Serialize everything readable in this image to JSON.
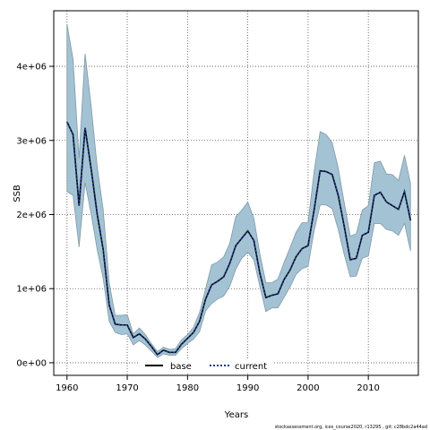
{
  "chart_data": {
    "type": "line",
    "title": "",
    "xlabel": "Years",
    "ylabel": "SSB",
    "xlim": [
      1957.8,
      2018.3
    ],
    "ylim": [
      -170000,
      4750000
    ],
    "grid": true,
    "legend_position": "bottom-center",
    "x_ticks": [
      1960,
      1970,
      1980,
      1990,
      2000,
      2010
    ],
    "x_tick_labels": [
      "1960",
      "1970",
      "1980",
      "1990",
      "2000",
      "2010"
    ],
    "y_ticks": [
      0,
      1000000,
      2000000,
      3000000,
      4000000
    ],
    "y_tick_labels": [
      "0e+00",
      "1e+06",
      "2e+06",
      "3e+06",
      "4e+06"
    ],
    "legend": [
      {
        "label": "base",
        "style": "solid",
        "color": "#000000"
      },
      {
        "label": "current",
        "style": "dotted",
        "color": "#1a3a8c"
      }
    ],
    "colors": {
      "band_fill": "#a3c2d3",
      "band_stroke": "#7f9aa8",
      "base_line": "#000000",
      "current_line": "#1a3a8c"
    },
    "x": [
      1960,
      1961,
      1962,
      1963,
      1964,
      1965,
      1966,
      1967,
      1968,
      1969,
      1970,
      1971,
      1972,
      1973,
      1974,
      1975,
      1976,
      1977,
      1978,
      1979,
      1980,
      1981,
      1982,
      1983,
      1984,
      1985,
      1986,
      1987,
      1988,
      1989,
      1990,
      1991,
      1992,
      1993,
      1994,
      1995,
      1996,
      1997,
      1998,
      1999,
      2000,
      2001,
      2002,
      2003,
      2004,
      2005,
      2006,
      2007,
      2008,
      2009,
      2010,
      2011,
      2012,
      2013,
      2014,
      2015,
      2016,
      2017
    ],
    "series": [
      {
        "name": "base",
        "values": [
          3250000,
          3080000,
          2120000,
          3170000,
          2620000,
          2010000,
          1530000,
          780000,
          520000,
          510000,
          510000,
          340000,
          390000,
          320000,
          220000,
          110000,
          170000,
          140000,
          140000,
          250000,
          330000,
          410000,
          560000,
          860000,
          1050000,
          1100000,
          1160000,
          1340000,
          1580000,
          1680000,
          1780000,
          1650000,
          1210000,
          880000,
          910000,
          930000,
          1120000,
          1250000,
          1430000,
          1540000,
          1580000,
          2060000,
          2590000,
          2580000,
          2540000,
          2260000,
          1840000,
          1390000,
          1410000,
          1720000,
          1760000,
          2260000,
          2300000,
          2170000,
          2120000,
          2070000,
          2310000,
          1920000
        ]
      },
      {
        "name": "current",
        "values": [
          3250000,
          3080000,
          2120000,
          3170000,
          2620000,
          2010000,
          1530000,
          780000,
          520000,
          510000,
          510000,
          340000,
          390000,
          320000,
          220000,
          110000,
          170000,
          140000,
          140000,
          250000,
          330000,
          410000,
          560000,
          860000,
          1050000,
          1100000,
          1160000,
          1340000,
          1580000,
          1680000,
          1780000,
          1650000,
          1210000,
          880000,
          910000,
          930000,
          1120000,
          1250000,
          1430000,
          1540000,
          1580000,
          2060000,
          2590000,
          2580000,
          2540000,
          2260000,
          1840000,
          1390000,
          1410000,
          1720000,
          1760000,
          2260000,
          2300000,
          2170000,
          2120000,
          2070000,
          2310000,
          1920000
        ]
      }
    ],
    "band": {
      "upper": [
        4570000,
        4100000,
        2760000,
        4170000,
        3470000,
        2650000,
        2070000,
        1080000,
        640000,
        640000,
        650000,
        390000,
        470000,
        380000,
        260000,
        150000,
        210000,
        180000,
        190000,
        310000,
        380000,
        480000,
        680000,
        1000000,
        1320000,
        1360000,
        1430000,
        1610000,
        1970000,
        2060000,
        2170000,
        1950000,
        1470000,
        1080000,
        1080000,
        1130000,
        1350000,
        1550000,
        1760000,
        1890000,
        1890000,
        2580000,
        3120000,
        3080000,
        2970000,
        2630000,
        2160000,
        1710000,
        1740000,
        2060000,
        2120000,
        2700000,
        2720000,
        2550000,
        2540000,
        2460000,
        2800000,
        2420000
      ],
      "lower": [
        2310000,
        2260000,
        1560000,
        2430000,
        2010000,
        1530000,
        1140000,
        560000,
        410000,
        380000,
        390000,
        240000,
        300000,
        240000,
        160000,
        70000,
        120000,
        100000,
        100000,
        190000,
        260000,
        320000,
        420000,
        700000,
        800000,
        860000,
        900000,
        1030000,
        1260000,
        1410000,
        1490000,
        1390000,
        1030000,
        690000,
        740000,
        740000,
        880000,
        1020000,
        1190000,
        1270000,
        1300000,
        1780000,
        2130000,
        2130000,
        2080000,
        1800000,
        1460000,
        1160000,
        1170000,
        1410000,
        1440000,
        1880000,
        1880000,
        1800000,
        1780000,
        1720000,
        1880000,
        1510000
      ]
    }
  },
  "footer_text": "stockassessment.org, ices_course2020, r13295 , git: c28bdc2a44ad"
}
